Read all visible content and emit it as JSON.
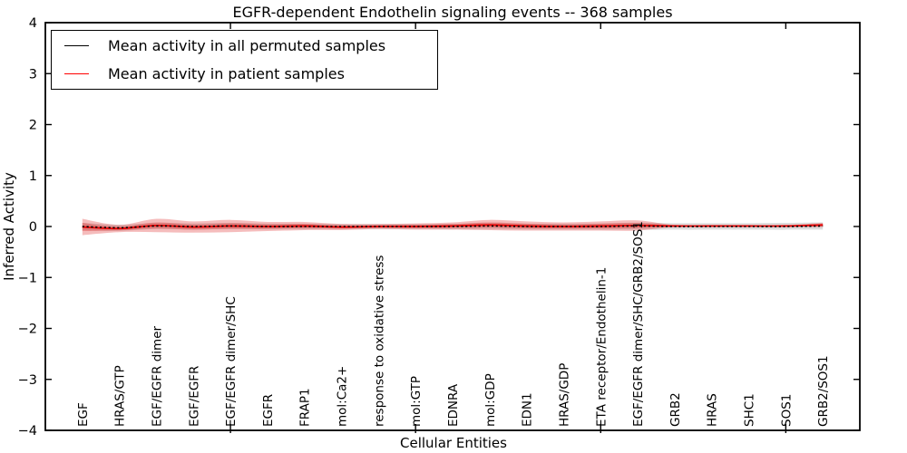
{
  "title": "EGFR-dependent Endothelin signaling events -- 368 samples",
  "legend": {
    "items": [
      {
        "label": "Mean activity in all permuted samples",
        "color": "#000000"
      },
      {
        "label": "Mean activity in patient samples",
        "color": "#ff0000"
      }
    ]
  },
  "chart_data": {
    "type": "line",
    "title": "EGFR-dependent Endothelin signaling events -- 368 samples",
    "xlabel": "Cellular Entities",
    "ylabel": "Inferred Activity",
    "ylim": [
      -4,
      4
    ],
    "xlim": [
      0,
      22
    ],
    "yticks": [
      4,
      3,
      2,
      1,
      0,
      -1,
      -2,
      -3,
      -4
    ],
    "xticks_unlabeled": [
      5,
      10,
      15,
      20
    ],
    "grid": false,
    "legend_position": "upper left",
    "categories": [
      "EGF",
      "HRAS/GTP",
      "EGF/EGFR dimer",
      "EGF/EGFR",
      "EGF/EGFR dimer/SHC",
      "EGFR",
      "FRAP1",
      "mol:Ca2+",
      "response to oxidative stress",
      "mol:GTP",
      "EDNRA",
      "mol:GDP",
      "EDN1",
      "HRAS/GDP",
      "ETA receptor/Endothelin-1",
      "EGF/EGFR dimer/SHC/GRB2/SOS1",
      "GRB2",
      "HRAS",
      "SHC1",
      "SOS1",
      "GRB2/SOS1"
    ],
    "x": [
      1,
      2,
      3,
      4,
      5,
      6,
      7,
      8,
      9,
      10,
      11,
      12,
      13,
      14,
      15,
      16,
      17,
      18,
      19,
      20,
      21
    ],
    "series": [
      {
        "name": "Mean activity in all permuted samples",
        "color": "#000000",
        "linestyle": "dotted",
        "values": [
          0,
          -0.025,
          0.01,
          0,
          0.01,
          0,
          0,
          0,
          0,
          0,
          0,
          0.01,
          0,
          0,
          0,
          0.01,
          0,
          0,
          0,
          0,
          0.01
        ]
      },
      {
        "name": "Mean activity in patient samples",
        "color": "#ee0000",
        "linestyle": "solid",
        "values": [
          -0.01,
          -0.04,
          0.02,
          -0.01,
          0.01,
          0,
          0.01,
          -0.01,
          0,
          0,
          0.01,
          0.03,
          0.01,
          0,
          0.01,
          0.02,
          0.01,
          0.01,
          0.01,
          0.01,
          0.03
        ]
      }
    ],
    "bands": [
      {
        "name": "permuted std band",
        "center_series": 0,
        "color": "#999999",
        "alpha": 0.35,
        "halfwidths": [
          0.07,
          0.06,
          0.06,
          0.06,
          0.06,
          0.055,
          0.055,
          0.05,
          0.05,
          0.05,
          0.055,
          0.06,
          0.055,
          0.055,
          0.06,
          0.065,
          0.065,
          0.065,
          0.065,
          0.07,
          0.07
        ]
      },
      {
        "name": "patient std band outer",
        "center_series": 1,
        "color": "#e03030",
        "alpha": 0.32,
        "halfwidths": [
          0.16,
          0.07,
          0.13,
          0.11,
          0.12,
          0.09,
          0.08,
          0.06,
          0.05,
          0.06,
          0.07,
          0.1,
          0.09,
          0.08,
          0.09,
          0.1,
          0.02,
          0.015,
          0.015,
          0.02,
          0.04
        ]
      },
      {
        "name": "patient std band inner",
        "center_series": 1,
        "color": "#e03030",
        "alpha": 0.35,
        "halfwidths": [
          0.08,
          0.035,
          0.06,
          0.05,
          0.055,
          0.045,
          0.04,
          0.03,
          0.025,
          0.03,
          0.035,
          0.05,
          0.045,
          0.04,
          0.045,
          0.05,
          0.01,
          0.008,
          0.008,
          0.01,
          0.02
        ]
      }
    ]
  }
}
